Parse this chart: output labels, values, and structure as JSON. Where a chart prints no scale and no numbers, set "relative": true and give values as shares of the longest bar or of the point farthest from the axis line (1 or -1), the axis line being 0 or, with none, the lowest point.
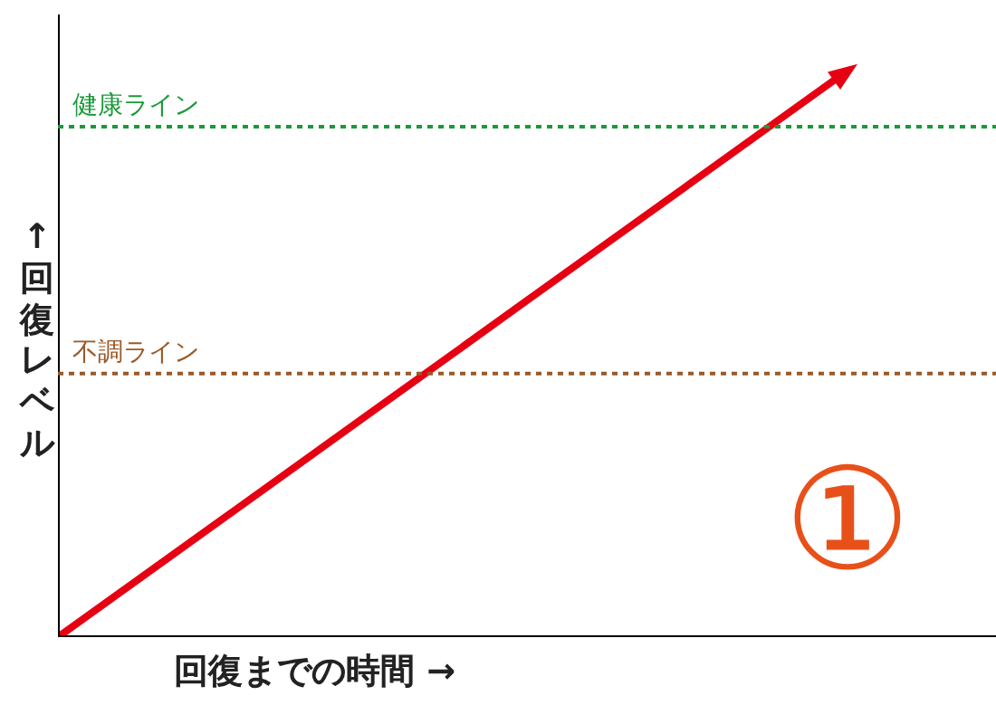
{
  "chart_data": {
    "type": "line",
    "relative": true,
    "xlabel": "回復までの時間 →",
    "ylabel": "↑回復レベル",
    "categories": [
      null,
      null,
      null,
      null,
      null,
      null,
      null
    ],
    "series": [
      {
        "color": "#e60012",
        "values": [
          0,
          0.2,
          0.4,
          0.6,
          0.8,
          1,
          null
        ]
      }
    ],
    "ref_lines": [
      {
        "axis": "y",
        "value": 0.91,
        "label": "健康ライン",
        "color": "#1a9a3a",
        "line_style": "dotted"
      },
      {
        "axis": "y",
        "value": 0.47,
        "label": "不調ライン",
        "color": "#9a5a28",
        "line_style": "dotted"
      }
    ],
    "annotations": [
      "①"
    ],
    "grid": false,
    "legend": false,
    "marker": "none",
    "line_style": "solid"
  }
}
